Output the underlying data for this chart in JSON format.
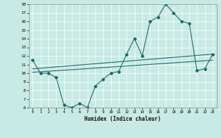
{
  "xlabel": "Humidex (Indice chaleur)",
  "xlim": [
    -0.5,
    23.5
  ],
  "ylim": [
    6,
    18
  ],
  "yticks": [
    6,
    7,
    8,
    9,
    10,
    11,
    12,
    13,
    14,
    15,
    16,
    17,
    18
  ],
  "xticks": [
    0,
    1,
    2,
    3,
    4,
    5,
    6,
    7,
    8,
    9,
    10,
    11,
    12,
    13,
    14,
    15,
    16,
    17,
    18,
    19,
    20,
    21,
    22,
    23
  ],
  "bg_color": "#c8eae4",
  "line_color": "#1a6b6b",
  "line1_x": [
    0,
    1,
    2,
    3,
    4,
    5,
    6,
    7,
    8,
    9,
    10,
    11,
    12,
    13,
    14,
    15,
    16,
    17,
    18,
    19,
    20,
    21,
    22,
    23
  ],
  "line1_y": [
    11.5,
    10.0,
    10.0,
    9.5,
    6.3,
    6.0,
    6.5,
    6.0,
    8.5,
    9.3,
    10.0,
    10.2,
    12.2,
    14.0,
    12.0,
    16.0,
    16.5,
    18.0,
    17.0,
    16.0,
    15.8,
    10.3,
    10.5,
    12.2
  ],
  "line2_x": [
    0,
    23
  ],
  "line2_y": [
    10.5,
    12.2
  ],
  "line3_x": [
    0,
    23
  ],
  "line3_y": [
    10.1,
    11.5
  ]
}
